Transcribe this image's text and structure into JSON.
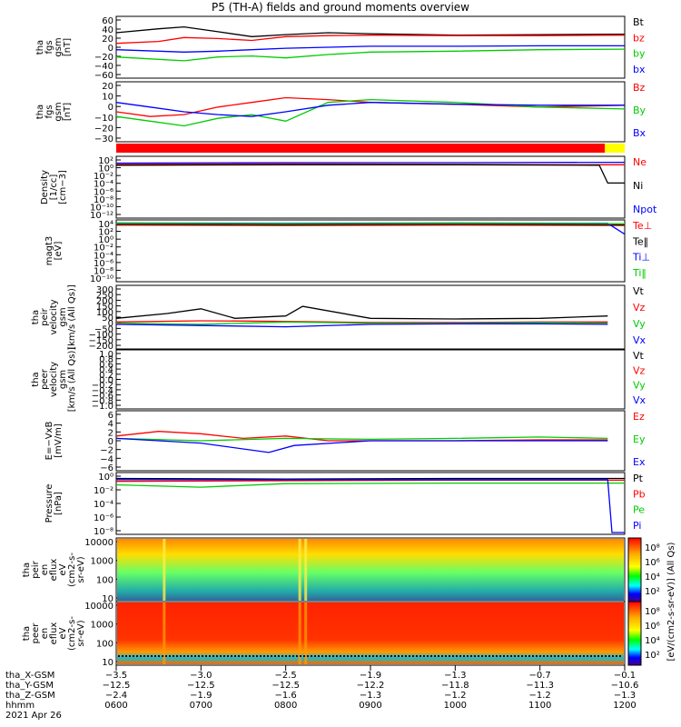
{
  "title": "P5 (TH-A) fields and ground moments overview",
  "date": "2021 Apr 26",
  "panels": [
    {
      "id": "fgs-gsm",
      "ylabel": [
        "tha",
        "fgs",
        "gsm",
        "[nT]"
      ],
      "yticks": [
        "60",
        "40",
        "20",
        "0",
        "−20",
        "−40",
        "−60"
      ],
      "legend": [
        {
          "label": "Bt",
          "color": "#000000"
        },
        {
          "label": "bz",
          "color": "#ff0000"
        },
        {
          "label": "by",
          "color": "#00cc00"
        },
        {
          "label": "bx",
          "color": "#0000ff"
        }
      ]
    },
    {
      "id": "fgs-gsm-dsl",
      "ylabel": [
        "tha",
        "fgs",
        "gsm",
        "[nT]"
      ],
      "yticks": [
        "20",
        "10",
        "0",
        "−10",
        "−20",
        "−30"
      ],
      "legend": [
        {
          "label": "Bz",
          "color": "#ff0000"
        },
        {
          "label": "By",
          "color": "#00cc00"
        },
        {
          "label": "Bx",
          "color": "#0000ff"
        }
      ]
    },
    {
      "id": "density",
      "ylabel": [
        "Density",
        "[1/cc]",
        "[cm−3]"
      ],
      "yticks": [
        "10²",
        "10⁰",
        "10⁻²",
        "10⁻⁴",
        "10⁻⁶",
        "10⁻⁸",
        "10⁻¹⁰",
        "10⁻¹²"
      ],
      "legend": [
        {
          "label": "Ne",
          "color": "#ff0000"
        },
        {
          "label": "Ni",
          "color": "#000000"
        },
        {
          "label": "Npot",
          "color": "#0000ff"
        }
      ]
    },
    {
      "id": "temperature",
      "ylabel": [
        "magt3",
        "[eV]"
      ],
      "yticks": [
        "10⁴",
        "10²",
        "10⁰",
        "10⁻²",
        "10⁻⁴",
        "10⁻⁶",
        "10⁻⁸",
        "10⁻¹⁰"
      ],
      "legend": [
        {
          "label": "Te⊥",
          "color": "#ff0000"
        },
        {
          "label": "Te‖",
          "color": "#000000"
        },
        {
          "label": "Ti⊥",
          "color": "#0000ff"
        },
        {
          "label": "Ti‖",
          "color": "#00cc00"
        }
      ]
    },
    {
      "id": "peir-velocity",
      "ylabel": [
        "tha",
        "peir",
        "velocity",
        "gsm",
        "[km/s (All Qs)]"
      ],
      "yticks": [
        "300",
        "250",
        "200",
        "150",
        "100",
        "50",
        "0",
        "−50",
        "−100",
        "−150",
        "−200"
      ],
      "legend": [
        {
          "label": "Vt",
          "color": "#000000"
        },
        {
          "label": "Vz",
          "color": "#ff0000"
        },
        {
          "label": "Vy",
          "color": "#00cc00"
        },
        {
          "label": "Vx",
          "color": "#0000ff"
        }
      ]
    },
    {
      "id": "peer-velocity",
      "ylabel": [
        "tha",
        "peer",
        "velocity",
        "gsm",
        "[km/s (All Qs)]"
      ],
      "yticks": [
        "1.0",
        "0.8",
        "0.6",
        "0.4",
        "0.2",
        "0.0",
        "−0.2",
        "−0.4",
        "−0.6",
        "−0.8",
        "−1.0"
      ],
      "legend": [
        {
          "label": "Vt",
          "color": "#000000"
        },
        {
          "label": "Vz",
          "color": "#ff0000"
        },
        {
          "label": "Vy",
          "color": "#00cc00"
        },
        {
          "label": "Vx",
          "color": "#0000ff"
        }
      ]
    },
    {
      "id": "e-field",
      "ylabel": [
        "E=−VxB",
        "[mV/m]"
      ],
      "yticks": [
        "6",
        "4",
        "2",
        "0",
        "−2",
        "−4",
        "−6"
      ],
      "legend": [
        {
          "label": "Ez",
          "color": "#ff0000"
        },
        {
          "label": "Ey",
          "color": "#00cc00"
        },
        {
          "label": "Ex",
          "color": "#0000ff"
        }
      ]
    },
    {
      "id": "pressure",
      "ylabel": [
        "Pressure",
        "[nPa]"
      ],
      "yticks": [
        "10⁰",
        "10⁻²",
        "10⁻⁴",
        "10⁻⁶",
        "10⁻⁸"
      ],
      "legend": [
        {
          "label": "Pt",
          "color": "#000000"
        },
        {
          "label": "Pb",
          "color": "#ff0000"
        },
        {
          "label": "Pe",
          "color": "#00cc00"
        },
        {
          "label": "Pi",
          "color": "#0000ff"
        }
      ]
    },
    {
      "id": "peir-eflux",
      "ylabel": [
        "tha",
        "peir",
        "en",
        "eflux",
        "eV",
        "(cm2-s-",
        "sr-eV)"
      ],
      "yticks": [
        "10000",
        "1000",
        "100",
        "10"
      ],
      "colorbar": [
        "10⁸",
        "10⁶",
        "10⁴",
        "10²"
      ]
    },
    {
      "id": "peer-eflux",
      "ylabel": [
        "tha",
        "peer",
        "en",
        "eflux",
        "eV",
        "(cm2-s-",
        "sr-eV)"
      ],
      "yticks": [
        "10000",
        "1000",
        "100",
        "10"
      ],
      "colorbar": [
        "10⁸",
        "10⁶",
        "10⁴",
        "10²"
      ]
    }
  ],
  "colorbar_label": "[eV/(cm2-s-sr-eV)] (All Qs)",
  "xaxis": {
    "rows": [
      {
        "label": "tha_X-GSM",
        "values": [
          "−3.5",
          "−3.0",
          "−2.5",
          "−1.9",
          "−1.3",
          "−0.7",
          "−0.1"
        ]
      },
      {
        "label": "tha_Y-GSM",
        "values": [
          "−12.5",
          "−12.5",
          "−12.5",
          "−12.2",
          "−11.8",
          "−11.3",
          "−10.6"
        ]
      },
      {
        "label": "tha_Z-GSM",
        "values": [
          "−2.4",
          "−1.9",
          "−1.6",
          "−1.3",
          "−1.2",
          "−1.2",
          "−1.3"
        ]
      },
      {
        "label": "hhmm",
        "values": [
          "0600",
          "0700",
          "0800",
          "0900",
          "1000",
          "1100",
          "1200"
        ]
      }
    ]
  },
  "chart_data": {
    "type": "line",
    "title": "P5 (TH-A) fields and ground moments overview",
    "x": [
      "0600",
      "0700",
      "0800",
      "0900",
      "1000",
      "1100",
      "1200"
    ],
    "xlabel": "hhmm",
    "panels": [
      {
        "id": "fgs-gsm",
        "ylim": [
          -60,
          60
        ],
        "series": [
          {
            "name": "Bt",
            "color": "#000000",
            "x": [
              6.0,
              6.5,
              6.8,
              7.2,
              7.6,
              8.0,
              8.5,
              9.0,
              10.0,
              11.0,
              12.0
            ],
            "y": [
              30,
              38,
              42,
              32,
              22,
              26,
              30,
              28,
              25,
              26,
              27
            ]
          },
          {
            "name": "bz",
            "color": "#ff0000",
            "x": [
              6.0,
              6.5,
              6.8,
              7.2,
              7.6,
              8.0,
              8.5,
              9.0,
              10.0,
              11.0,
              12.0
            ],
            "y": [
              8,
              12,
              20,
              18,
              14,
              22,
              24,
              25,
              24,
              24,
              25
            ]
          },
          {
            "name": "by",
            "color": "#00cc00",
            "x": [
              6.0,
              6.5,
              6.8,
              7.2,
              7.6,
              8.0,
              8.5,
              9.0,
              10.0,
              11.0,
              12.0
            ],
            "y": [
              -20,
              -25,
              -28,
              -20,
              -18,
              -22,
              -15,
              -10,
              -8,
              -5,
              -4
            ]
          },
          {
            "name": "bx",
            "color": "#0000ff",
            "x": [
              6.0,
              6.5,
              6.8,
              7.2,
              7.6,
              8.0,
              8.5,
              9.0,
              10.0,
              11.0,
              12.0
            ],
            "y": [
              -5,
              -8,
              -10,
              -8,
              -5,
              -2,
              0,
              2,
              2,
              3,
              3
            ]
          }
        ]
      },
      {
        "id": "fgs-gsm-dsl",
        "ylim": [
          -35,
          25
        ],
        "series": [
          {
            "name": "Bz",
            "color": "#ff0000",
            "x": [
              6.0,
              6.4,
              6.8,
              7.2,
              7.6,
              8.0,
              8.5,
              9.0,
              10.0,
              11.0,
              12.0
            ],
            "y": [
              -5,
              -10,
              -8,
              0,
              5,
              10,
              8,
              5,
              3,
              0,
              2
            ]
          },
          {
            "name": "By",
            "color": "#00cc00",
            "x": [
              6.0,
              6.4,
              6.8,
              7.2,
              7.6,
              8.0,
              8.5,
              9.0,
              10.0,
              11.0,
              12.0
            ],
            "y": [
              -10,
              -15,
              -20,
              -12,
              -8,
              -15,
              5,
              8,
              5,
              0,
              -2
            ]
          },
          {
            "name": "Bx",
            "color": "#0000ff",
            "x": [
              6.0,
              6.4,
              6.8,
              7.2,
              7.6,
              8.0,
              8.5,
              9.0,
              10.0,
              11.0,
              12.0
            ],
            "y": [
              5,
              0,
              -5,
              -8,
              -10,
              -5,
              2,
              5,
              3,
              2,
              2
            ]
          }
        ]
      },
      {
        "id": "density",
        "ylim": [
          -12,
          2
        ],
        "ylog": true,
        "series": [
          {
            "name": "Ne",
            "color": "#ff0000",
            "x": [
              6,
              8,
              10,
              11.7,
              12
            ],
            "y": [
              0.5,
              0.6,
              0.5,
              0.4,
              0.4
            ]
          },
          {
            "name": "Ni",
            "color": "#000000",
            "x": [
              6,
              8,
              10,
              11.7,
              11.8,
              12
            ],
            "y": [
              0.3,
              0.4,
              0.4,
              0.3,
              -4,
              -4
            ]
          },
          {
            "name": "Npot",
            "color": "#0000ff",
            "x": [
              6,
              8,
              10,
              12
            ],
            "y": [
              0.8,
              0.9,
              0.9,
              1.0
            ]
          }
        ]
      },
      {
        "id": "temperature",
        "ylim": [
          -10,
          4
        ],
        "ylog": true,
        "series": [
          {
            "name": "Te⊥",
            "color": "#ff0000",
            "x": [
              6,
              8,
              10,
              12
            ],
            "y": [
              3.2,
              3.1,
              3.2,
              3.1
            ]
          },
          {
            "name": "Te‖",
            "color": "#000000",
            "x": [
              6,
              8,
              10,
              12
            ],
            "y": [
              3.4,
              3.3,
              3.4,
              3.3
            ]
          },
          {
            "name": "Ti⊥",
            "color": "#0000ff",
            "x": [
              6,
              8,
              10,
              11.8,
              12
            ],
            "y": [
              3.7,
              3.6,
              3.7,
              3.6,
              1.0
            ]
          },
          {
            "name": "Ti‖",
            "color": "#00cc00",
            "x": [
              6,
              8,
              10,
              12
            ],
            "y": [
              3.6,
              3.5,
              3.6,
              3.5
            ]
          }
        ]
      },
      {
        "id": "peir-velocity",
        "ylim": [
          -200,
          300
        ],
        "series": [
          {
            "name": "Vt",
            "color": "#000000",
            "x": [
              6,
              6.6,
              7.0,
              7.4,
              8.0,
              8.2,
              9,
              10,
              11,
              11.8
            ],
            "y": [
              40,
              80,
              120,
              40,
              60,
              140,
              40,
              35,
              40,
              60
            ]
          },
          {
            "name": "Vz",
            "color": "#ff0000",
            "x": [
              6,
              7,
              8,
              9,
              10,
              11,
              11.8
            ],
            "y": [
              10,
              20,
              15,
              5,
              5,
              10,
              10
            ]
          },
          {
            "name": "Vy",
            "color": "#00cc00",
            "x": [
              6,
              7,
              8,
              9,
              10,
              11,
              11.8
            ],
            "y": [
              0,
              -10,
              10,
              0,
              0,
              5,
              0
            ]
          },
          {
            "name": "Vx",
            "color": "#0000ff",
            "x": [
              6,
              7,
              8,
              9,
              10,
              11,
              11.8
            ],
            "y": [
              -10,
              -20,
              -30,
              -10,
              -5,
              -5,
              -10
            ]
          }
        ]
      },
      {
        "id": "peer-velocity",
        "ylim": [
          -1,
          1
        ],
        "series": []
      },
      {
        "id": "e-field",
        "ylim": [
          -6,
          6
        ],
        "series": [
          {
            "name": "Ez",
            "color": "#ff0000",
            "x": [
              6,
              6.5,
              7,
              7.5,
              8,
              8.5,
              9,
              10,
              11,
              11.8
            ],
            "y": [
              1,
              2,
              1.5,
              0.5,
              1,
              0,
              0,
              0,
              0.2,
              0.2
            ]
          },
          {
            "name": "Ey",
            "color": "#00cc00",
            "x": [
              6,
              7,
              8,
              9,
              10,
              11,
              11.8
            ],
            "y": [
              0.5,
              0,
              0.5,
              0.3,
              0.5,
              0.8,
              0.5
            ]
          },
          {
            "name": "Ex",
            "color": "#0000ff",
            "x": [
              6,
              7,
              7.8,
              8.1,
              9,
              10,
              11,
              11.8
            ],
            "y": [
              0.5,
              -0.5,
              -2.5,
              -1,
              0,
              0,
              0,
              0
            ]
          }
        ]
      },
      {
        "id": "pressure",
        "ylim": [
          -9,
          1
        ],
        "ylog": true,
        "series": [
          {
            "name": "Pt",
            "color": "#000000",
            "x": [
              6,
              8,
              10,
              12
            ],
            "y": [
              0.3,
              0.2,
              0.3,
              0.3
            ]
          },
          {
            "name": "Pb",
            "color": "#ff0000",
            "x": [
              6,
              8,
              10,
              12
            ],
            "y": [
              -0.2,
              -0.1,
              0,
              0
            ]
          },
          {
            "name": "Pe",
            "color": "#00cc00",
            "x": [
              6,
              7,
              8,
              10,
              12
            ],
            "y": [
              -0.8,
              -1.2,
              -0.6,
              -0.5,
              -0.5
            ]
          },
          {
            "name": "Pi",
            "color": "#0000ff",
            "x": [
              6,
              8,
              10,
              11.8,
              11.85,
              12
            ],
            "y": [
              0.1,
              0.1,
              0.1,
              0.1,
              -9,
              -9
            ]
          }
        ]
      }
    ]
  }
}
